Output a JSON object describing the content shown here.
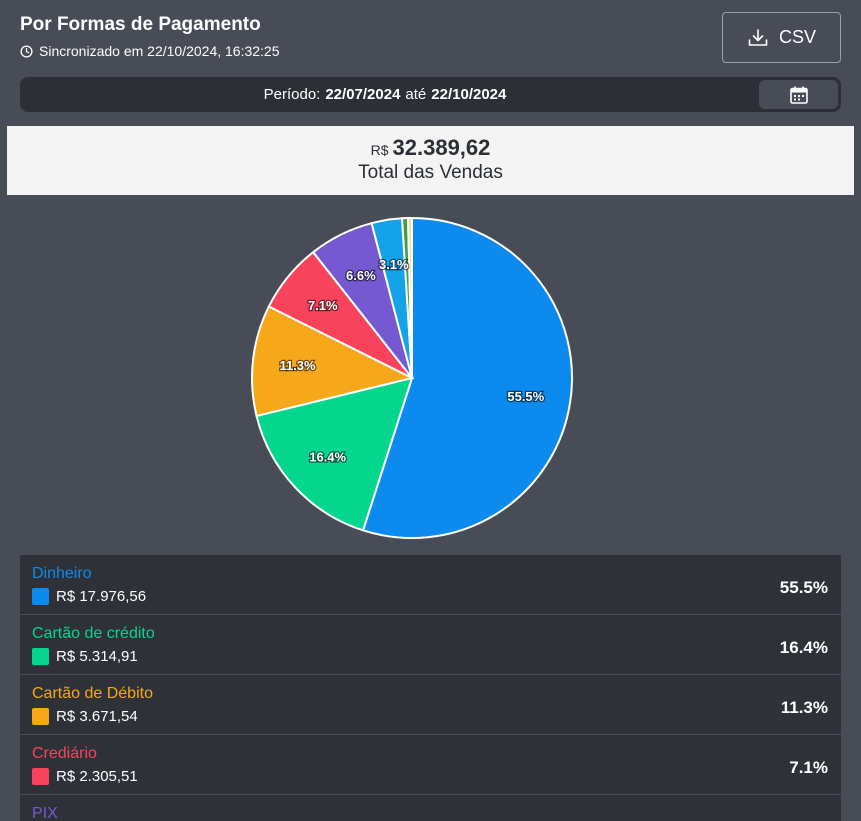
{
  "header": {
    "title": "Por Formas de Pagamento",
    "sync_text": "Sincronizado em 22/10/2024, 16:32:25",
    "csv_label": "CSV"
  },
  "period": {
    "label": "Período:",
    "start": "22/07/2024",
    "separator": "até",
    "end": "22/10/2024"
  },
  "total": {
    "currency": "R$",
    "value": "32.389,62",
    "label": "Total das Vendas"
  },
  "chart_data": {
    "type": "pie",
    "categories": [
      "Dinheiro",
      "Cartão de crédito",
      "Cartão de Débito",
      "Crediário",
      "PIX",
      "",
      "",
      ""
    ],
    "values": [
      55.5,
      16.4,
      11.3,
      7.1,
      6.6,
      3.1,
      0.6,
      0.4
    ],
    "labels": [
      "55.5%",
      "16.4%",
      "11.3%",
      "7.1%",
      "6.6%",
      "3.1%",
      "",
      ""
    ],
    "colors": [
      "#0d8aee",
      "#04d68d",
      "#f6a81a",
      "#f7445c",
      "#7459d1",
      "#14a2e8",
      "#3f9e45",
      "#e8e08a"
    ]
  },
  "legend": [
    {
      "name": "Dinheiro",
      "amount": "R$ 17.976,56",
      "percent": "55.5%",
      "color": "#0d8aee"
    },
    {
      "name": "Cartão de crédito",
      "amount": "R$ 5.314,91",
      "percent": "16.4%",
      "color": "#04d68d"
    },
    {
      "name": "Cartão de Débito",
      "amount": "R$ 3.671,54",
      "percent": "11.3%",
      "color": "#f6a81a"
    },
    {
      "name": "Crediário",
      "amount": "R$ 2.305,51",
      "percent": "7.1%",
      "color": "#f7445c"
    },
    {
      "name": "PIX",
      "amount": "",
      "percent": "",
      "color": "#7459d1"
    }
  ],
  "icons": {
    "clock": "clock-icon",
    "download": "download-icon",
    "calendar": "calendar-icon"
  }
}
